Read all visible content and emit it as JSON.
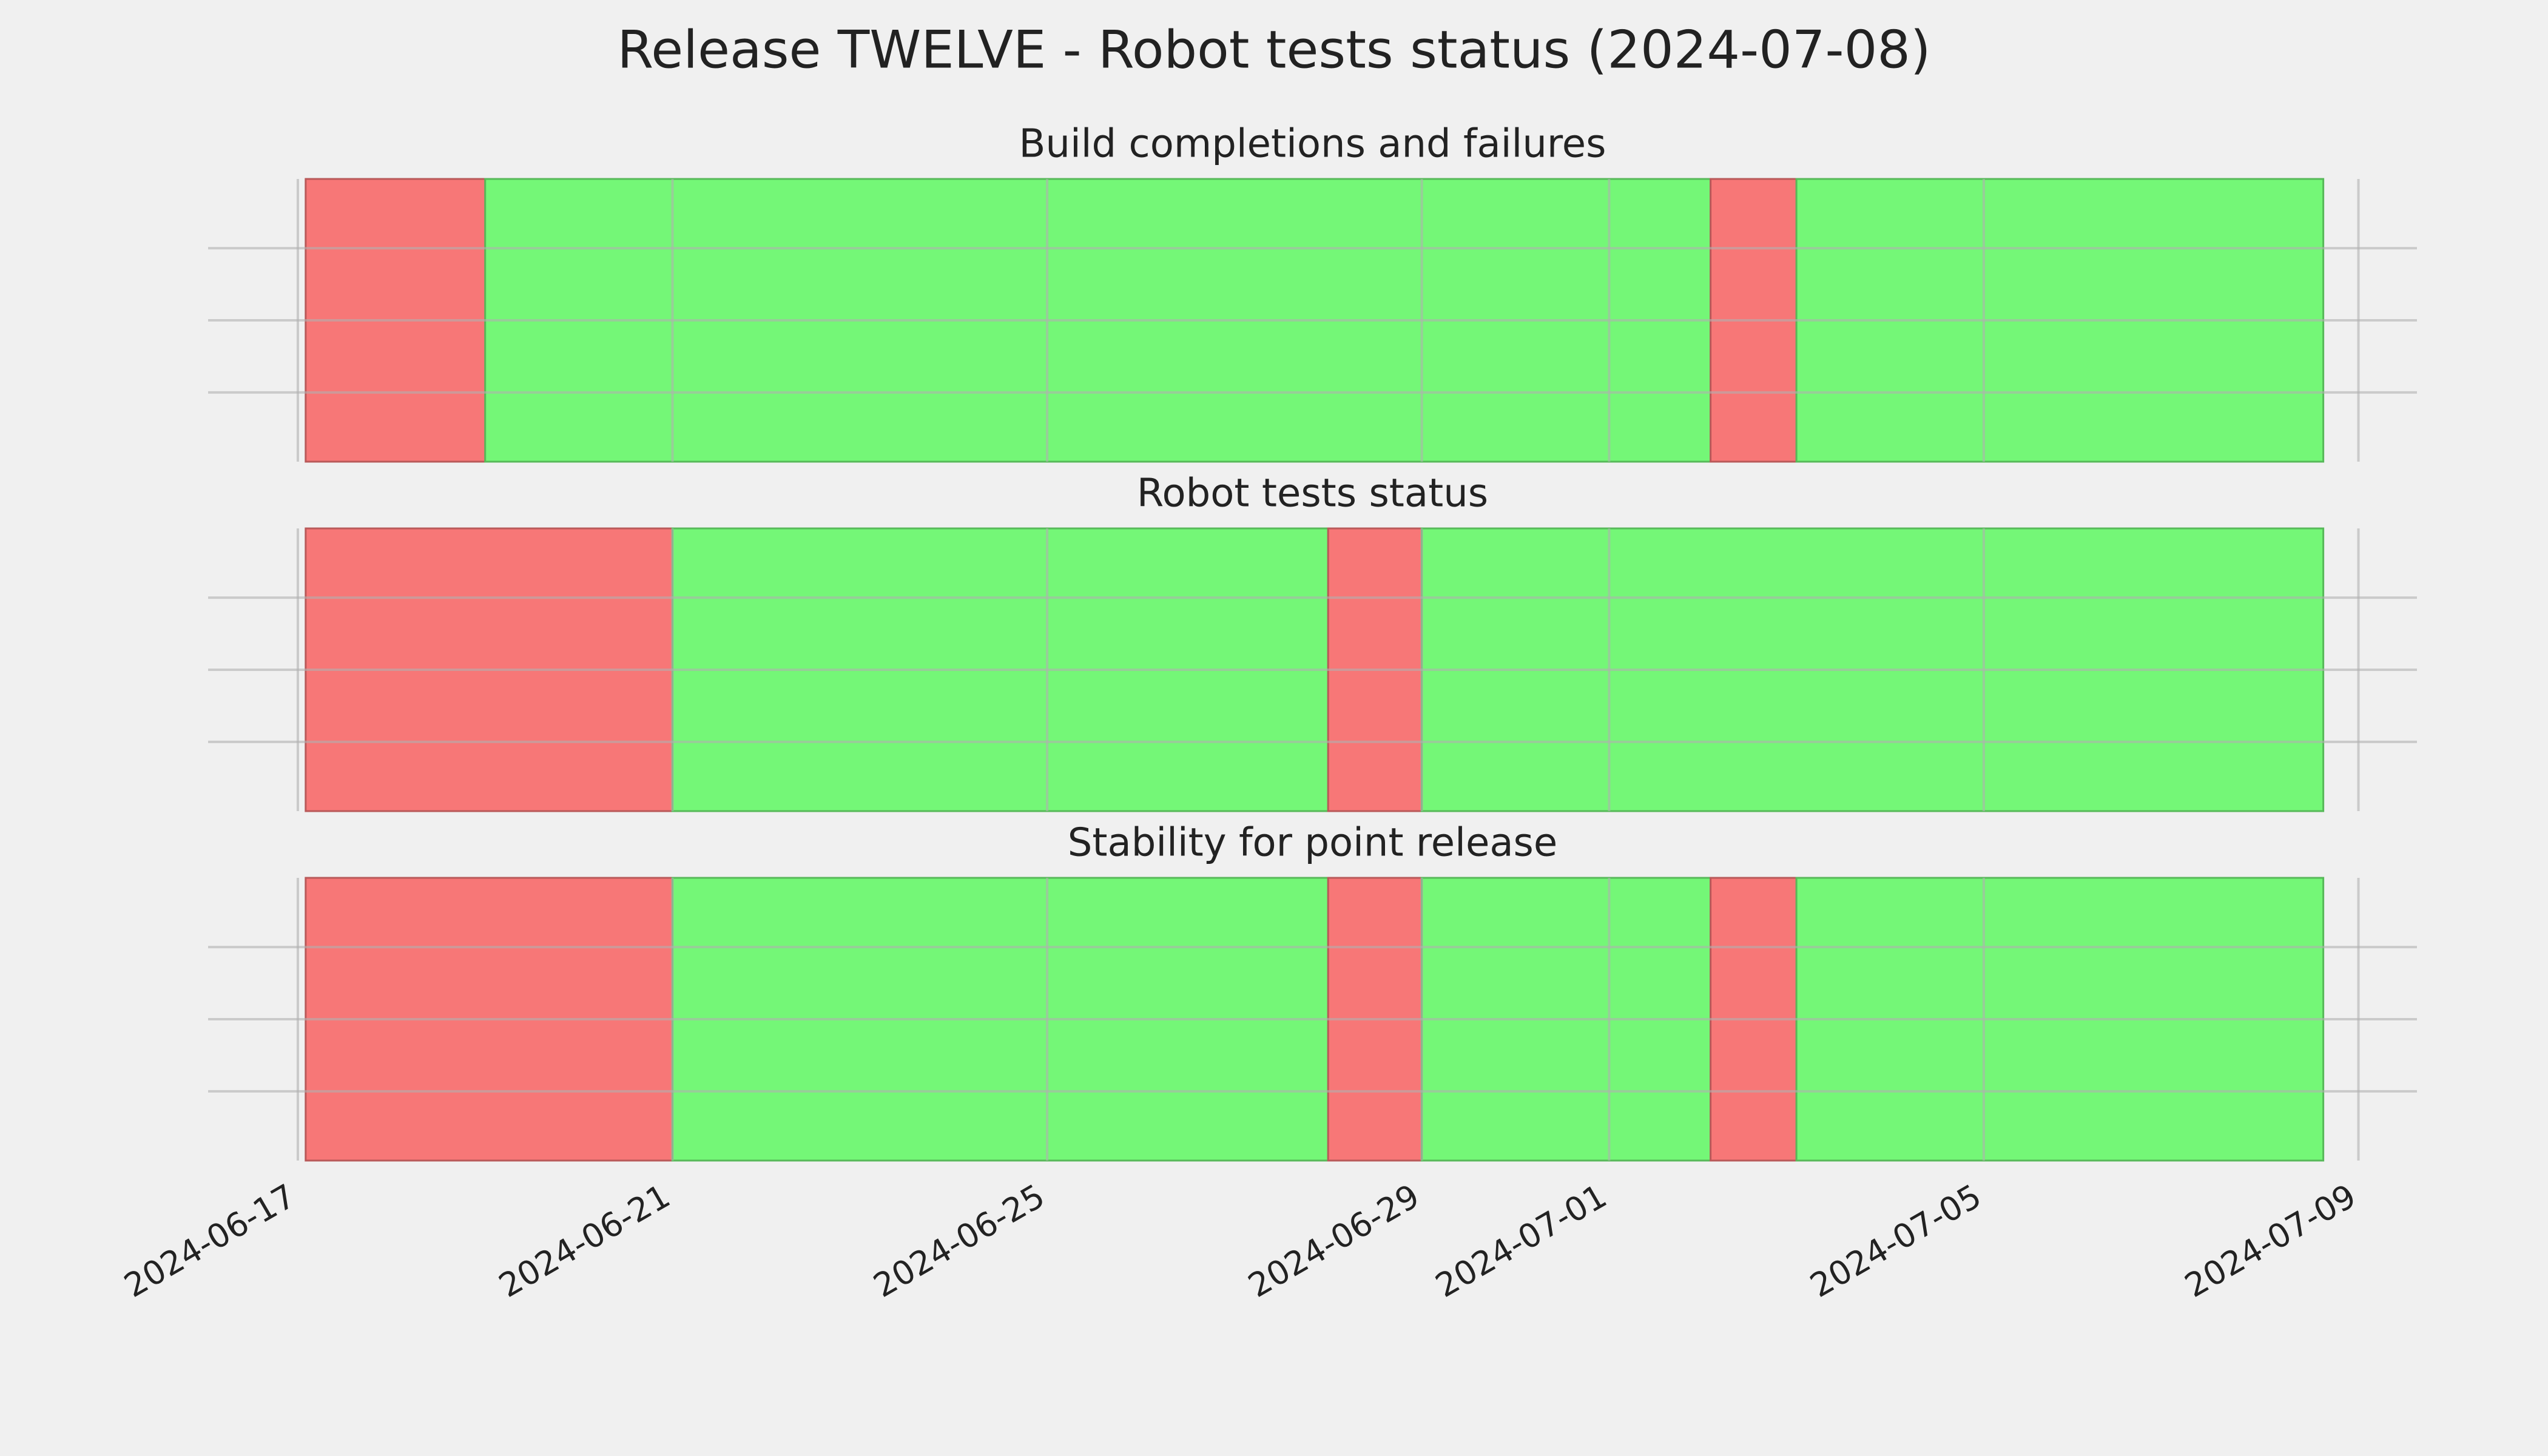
{
  "title": "Release TWELVE - Robot tests status (2024-07-08)",
  "chart_data": [
    {
      "type": "timeline",
      "title": "Build completions and failures",
      "spans": [
        {
          "start": "2024-06-17T02:00",
          "end": "2024-06-19T00:00",
          "color": "#f77777"
        },
        {
          "start": "2024-06-19T00:00",
          "end": "2024-07-02T02:00",
          "color": "#74f777"
        },
        {
          "start": "2024-07-02T02:00",
          "end": "2024-07-03T00:00",
          "color": "#f77777"
        },
        {
          "start": "2024-07-03T00:00",
          "end": "2024-07-08T15:00",
          "color": "#74f777"
        }
      ],
      "xlim": [
        "2024-06-16T01:00",
        "2024-07-09T15:00"
      ],
      "xticks": [
        "2024-06-17",
        "2024-06-21",
        "2024-06-25",
        "2024-06-29",
        "2024-07-01",
        "2024-07-05",
        "2024-07-09"
      ],
      "grid": true
    },
    {
      "type": "timeline",
      "title": "Robot tests status",
      "spans": [
        {
          "start": "2024-06-17T02:00",
          "end": "2024-06-21T00:00",
          "color": "#f77777"
        },
        {
          "start": "2024-06-21T00:00",
          "end": "2024-06-28T00:00",
          "color": "#74f777"
        },
        {
          "start": "2024-06-28T00:00",
          "end": "2024-06-29T00:00",
          "color": "#f77777"
        },
        {
          "start": "2024-06-29T00:00",
          "end": "2024-07-08T15:00",
          "color": "#74f777"
        }
      ],
      "xlim": [
        "2024-06-16T01:00",
        "2024-07-09T15:00"
      ],
      "xticks": [
        "2024-06-17",
        "2024-06-21",
        "2024-06-25",
        "2024-06-29",
        "2024-07-01",
        "2024-07-05",
        "2024-07-09"
      ],
      "grid": true
    },
    {
      "type": "timeline",
      "title": "Stability for point release",
      "spans": [
        {
          "start": "2024-06-17T02:00",
          "end": "2024-06-21T00:00",
          "color": "#f77777"
        },
        {
          "start": "2024-06-21T00:00",
          "end": "2024-06-28T00:00",
          "color": "#74f777"
        },
        {
          "start": "2024-06-28T00:00",
          "end": "2024-06-29T00:00",
          "color": "#f77777"
        },
        {
          "start": "2024-06-29T00:00",
          "end": "2024-07-02T02:00",
          "color": "#74f777"
        },
        {
          "start": "2024-07-02T02:00",
          "end": "2024-07-03T00:00",
          "color": "#f77777"
        },
        {
          "start": "2024-07-03T00:00",
          "end": "2024-07-08T15:00",
          "color": "#74f777"
        }
      ],
      "xlim": [
        "2024-06-16T01:00",
        "2024-07-09T15:00"
      ],
      "xticks": [
        "2024-06-17",
        "2024-06-21",
        "2024-06-25",
        "2024-06-29",
        "2024-07-01",
        "2024-07-05",
        "2024-07-09"
      ],
      "grid": true
    }
  ]
}
